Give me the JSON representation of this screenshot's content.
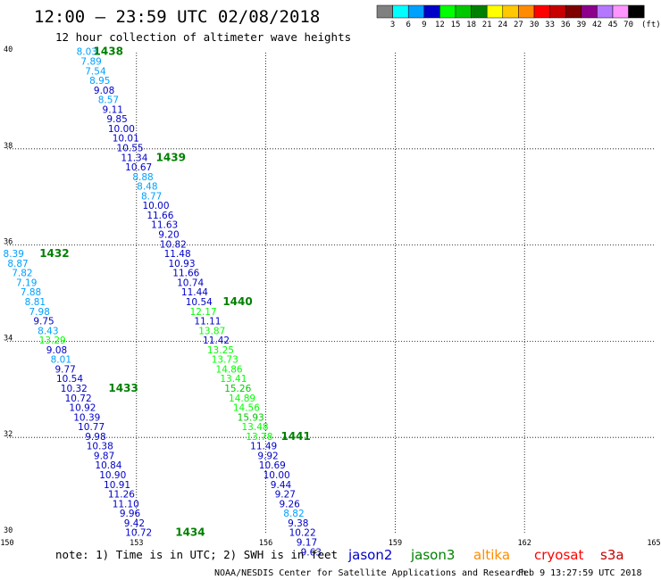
{
  "header": {
    "title": "12:00 – 23:59 UTC 02/08/2018",
    "subtitle": "12 hour collection of altimeter wave heights"
  },
  "scale": {
    "colors": [
      "#808080",
      "#00ffff",
      "#00a0ff",
      "#0000c8",
      "#00ff00",
      "#00c800",
      "#008000",
      "#ffff00",
      "#ffc800",
      "#ff8c00",
      "#ff0000",
      "#c80000",
      "#800000",
      "#8c008c",
      "#b478ff",
      "#ff96ff",
      "#000000"
    ],
    "ticks": [
      "3",
      "6",
      "9",
      "12",
      "15",
      "18",
      "21",
      "24",
      "27",
      "30",
      "33",
      "36",
      "39",
      "42",
      "45",
      "70"
    ],
    "unit": "(ft)"
  },
  "footer": {
    "note": "note:  1) Time is in UTC; 2) SWH is in feet",
    "credit": "NOAA/NESDIS Center for Satellite Applications and Research",
    "timestamp": "Feb  9 13:27:59 UTC 2018",
    "satellites": [
      {
        "name": "jason2",
        "color": "#0000c8"
      },
      {
        "name": "jason3",
        "color": "#008000"
      },
      {
        "name": "altika",
        "color": "#ff8c00"
      },
      {
        "name": "cryosat",
        "color": "#ff0000"
      },
      {
        "name": "s3a",
        "color": "#c80000"
      }
    ]
  },
  "chart_data": {
    "type": "scatter",
    "title": "12:00 – 23:59 UTC 02/08/2018",
    "subtitle": "12 hour collection of altimeter wave heights",
    "xlim": [
      150,
      165
    ],
    "ylim": [
      30,
      40
    ],
    "x_ticks": [
      "150",
      "153",
      "156",
      "159",
      "162",
      "165"
    ],
    "y_ticks": [
      "30",
      "32",
      "34",
      "36",
      "38",
      "40"
    ],
    "grid": true,
    "tracks": [
      {
        "points": [
          {
            "lon": 151.85,
            "lat": 39.95,
            "value": "8.03",
            "color": "#00a0ff"
          },
          {
            "lon": 151.95,
            "lat": 39.75,
            "value": "7.89",
            "color": "#00a0ff"
          },
          {
            "lon": 152.05,
            "lat": 39.55,
            "value": "7.54",
            "color": "#00a0ff"
          },
          {
            "lon": 152.15,
            "lat": 39.35,
            "value": "8.95",
            "color": "#00a0ff"
          },
          {
            "lon": 152.25,
            "lat": 39.15,
            "value": "9.08",
            "color": "#0000c8"
          },
          {
            "lon": 152.35,
            "lat": 38.95,
            "value": "8.57",
            "color": "#00a0ff"
          },
          {
            "lon": 152.45,
            "lat": 38.75,
            "value": "9.11",
            "color": "#0000c8"
          },
          {
            "lon": 152.55,
            "lat": 38.55,
            "value": "9.85",
            "color": "#0000c8"
          },
          {
            "lon": 152.65,
            "lat": 38.35,
            "value": "10.00",
            "color": "#0000c8"
          },
          {
            "lon": 152.75,
            "lat": 38.15,
            "value": "10.01",
            "color": "#0000c8"
          },
          {
            "lon": 152.85,
            "lat": 37.95,
            "value": "10.55",
            "color": "#0000c8"
          },
          {
            "lon": 152.95,
            "lat": 37.75,
            "value": "11.34",
            "color": "#0000c8"
          },
          {
            "lon": 153.05,
            "lat": 37.55,
            "value": "10.67",
            "color": "#0000c8"
          },
          {
            "lon": 153.15,
            "lat": 37.35,
            "value": "8.88",
            "color": "#00a0ff"
          },
          {
            "lon": 153.25,
            "lat": 37.15,
            "value": "8.48",
            "color": "#00a0ff"
          },
          {
            "lon": 153.35,
            "lat": 36.95,
            "value": "8.77",
            "color": "#00a0ff"
          },
          {
            "lon": 153.45,
            "lat": 36.75,
            "value": "10.00",
            "color": "#0000c8"
          },
          {
            "lon": 153.55,
            "lat": 36.55,
            "value": "11.66",
            "color": "#0000c8"
          },
          {
            "lon": 153.65,
            "lat": 36.35,
            "value": "11.63",
            "color": "#0000c8"
          },
          {
            "lon": 153.75,
            "lat": 36.15,
            "value": "9.20",
            "color": "#0000c8"
          },
          {
            "lon": 153.85,
            "lat": 35.95,
            "value": "10.82",
            "color": "#0000c8"
          },
          {
            "lon": 153.95,
            "lat": 35.75,
            "value": "11.48",
            "color": "#0000c8"
          },
          {
            "lon": 154.05,
            "lat": 35.55,
            "value": "10.93",
            "color": "#0000c8"
          },
          {
            "lon": 154.15,
            "lat": 35.35,
            "value": "11.66",
            "color": "#0000c8"
          },
          {
            "lon": 154.25,
            "lat": 35.15,
            "value": "10.74",
            "color": "#0000c8"
          },
          {
            "lon": 154.35,
            "lat": 34.95,
            "value": "11.44",
            "color": "#0000c8"
          },
          {
            "lon": 154.45,
            "lat": 34.75,
            "value": "10.54",
            "color": "#0000c8"
          },
          {
            "lon": 154.55,
            "lat": 34.55,
            "value": "12.17",
            "color": "#00ff00"
          },
          {
            "lon": 154.65,
            "lat": 34.35,
            "value": "11.11",
            "color": "#0000c8"
          },
          {
            "lon": 154.75,
            "lat": 34.15,
            "value": "13.87",
            "color": "#00ff00"
          },
          {
            "lon": 154.85,
            "lat": 33.95,
            "value": "11.42",
            "color": "#0000c8"
          },
          {
            "lon": 154.95,
            "lat": 33.75,
            "value": "13.25",
            "color": "#00ff00"
          },
          {
            "lon": 155.05,
            "lat": 33.55,
            "value": "13.73",
            "color": "#00ff00"
          },
          {
            "lon": 155.15,
            "lat": 33.35,
            "value": "14.86",
            "color": "#00ff00"
          },
          {
            "lon": 155.25,
            "lat": 33.15,
            "value": "13.41",
            "color": "#00ff00"
          },
          {
            "lon": 155.35,
            "lat": 32.95,
            "value": "15.26",
            "color": "#00c800"
          },
          {
            "lon": 155.45,
            "lat": 32.75,
            "value": "14.89",
            "color": "#00ff00"
          },
          {
            "lon": 155.55,
            "lat": 32.55,
            "value": "14.56",
            "color": "#00ff00"
          },
          {
            "lon": 155.65,
            "lat": 32.35,
            "value": "15.93",
            "color": "#00c800"
          },
          {
            "lon": 155.75,
            "lat": 32.15,
            "value": "13.48",
            "color": "#00ff00"
          },
          {
            "lon": 155.85,
            "lat": 31.95,
            "value": "13.78",
            "color": "#00ff00"
          },
          {
            "lon": 155.95,
            "lat": 31.75,
            "value": "11.49",
            "color": "#0000c8"
          },
          {
            "lon": 156.05,
            "lat": 31.55,
            "value": "9.92",
            "color": "#0000c8"
          },
          {
            "lon": 156.15,
            "lat": 31.35,
            "value": "10.69",
            "color": "#0000c8"
          },
          {
            "lon": 156.25,
            "lat": 31.15,
            "value": "10.00",
            "color": "#0000c8"
          },
          {
            "lon": 156.35,
            "lat": 30.95,
            "value": "9.44",
            "color": "#0000c8"
          },
          {
            "lon": 156.45,
            "lat": 30.75,
            "value": "9.27",
            "color": "#0000c8"
          },
          {
            "lon": 156.55,
            "lat": 30.55,
            "value": "9.26",
            "color": "#0000c8"
          },
          {
            "lon": 156.65,
            "lat": 30.35,
            "value": "8.82",
            "color": "#00a0ff"
          },
          {
            "lon": 156.75,
            "lat": 30.15,
            "value": "9.38",
            "color": "#0000c8"
          }
        ]
      },
      {
        "points": [
          {
            "lon": 156.85,
            "lat": 29.95,
            "value": "10.22",
            "color": "#0000c8"
          },
          {
            "lon": 156.95,
            "lat": 29.75,
            "value": "9.17",
            "color": "#0000c8"
          },
          {
            "lon": 157.05,
            "lat": 29.55,
            "value": "9.63",
            "color": "#0000c8"
          }
        ]
      },
      {
        "points": [
          {
            "lon": 150.15,
            "lat": 35.75,
            "value": "8.39",
            "color": "#00a0ff"
          },
          {
            "lon": 150.25,
            "lat": 35.55,
            "value": "8.87",
            "color": "#00a0ff"
          },
          {
            "lon": 150.35,
            "lat": 35.35,
            "value": "7.82",
            "color": "#00a0ff"
          },
          {
            "lon": 150.45,
            "lat": 35.15,
            "value": "7.19",
            "color": "#00a0ff"
          },
          {
            "lon": 150.55,
            "lat": 34.95,
            "value": "7.88",
            "color": "#00a0ff"
          },
          {
            "lon": 150.65,
            "lat": 34.75,
            "value": "8.81",
            "color": "#00a0ff"
          },
          {
            "lon": 150.75,
            "lat": 34.55,
            "value": "7.98",
            "color": "#00a0ff"
          },
          {
            "lon": 150.85,
            "lat": 34.35,
            "value": "9.75",
            "color": "#0000c8"
          },
          {
            "lon": 150.95,
            "lat": 34.15,
            "value": "8.43",
            "color": "#00a0ff"
          },
          {
            "lon": 151.05,
            "lat": 33.95,
            "value": "13.29",
            "color": "#00ff00"
          },
          {
            "lon": 151.15,
            "lat": 33.75,
            "value": "9.08",
            "color": "#0000c8"
          },
          {
            "lon": 151.25,
            "lat": 33.55,
            "value": "8.01",
            "color": "#00a0ff"
          },
          {
            "lon": 151.35,
            "lat": 33.35,
            "value": "9.77",
            "color": "#0000c8"
          },
          {
            "lon": 151.45,
            "lat": 33.15,
            "value": "10.54",
            "color": "#0000c8"
          },
          {
            "lon": 151.55,
            "lat": 32.95,
            "value": "10.32",
            "color": "#0000c8"
          },
          {
            "lon": 151.65,
            "lat": 32.75,
            "value": "10.72",
            "color": "#0000c8"
          },
          {
            "lon": 151.75,
            "lat": 32.55,
            "value": "10.92",
            "color": "#0000c8"
          },
          {
            "lon": 151.85,
            "lat": 32.35,
            "value": "10.39",
            "color": "#0000c8"
          },
          {
            "lon": 151.95,
            "lat": 32.15,
            "value": "10.77",
            "color": "#0000c8"
          },
          {
            "lon": 152.05,
            "lat": 31.95,
            "value": "9.98",
            "color": "#0000c8"
          },
          {
            "lon": 152.15,
            "lat": 31.75,
            "value": "10.38",
            "color": "#0000c8"
          },
          {
            "lon": 152.25,
            "lat": 31.55,
            "value": "9.87",
            "color": "#0000c8"
          },
          {
            "lon": 152.35,
            "lat": 31.35,
            "value": "10.84",
            "color": "#0000c8"
          },
          {
            "lon": 152.45,
            "lat": 31.15,
            "value": "10.90",
            "color": "#0000c8"
          },
          {
            "lon": 152.55,
            "lat": 30.95,
            "value": "10.91",
            "color": "#0000c8"
          },
          {
            "lon": 152.65,
            "lat": 30.75,
            "value": "11.26",
            "color": "#0000c8"
          },
          {
            "lon": 152.75,
            "lat": 30.55,
            "value": "11.10",
            "color": "#0000c8"
          },
          {
            "lon": 152.85,
            "lat": 30.35,
            "value": "9.96",
            "color": "#0000c8"
          },
          {
            "lon": 152.95,
            "lat": 30.15,
            "value": "9.42",
            "color": "#0000c8"
          },
          {
            "lon": 153.05,
            "lat": 29.95,
            "value": "10.72",
            "color": "#0000c8"
          }
        ]
      }
    ],
    "time_labels": [
      {
        "lon": 152.0,
        "lat": 39.95,
        "text": "1438"
      },
      {
        "lon": 153.45,
        "lat": 37.75,
        "text": "1439"
      },
      {
        "lon": 150.75,
        "lat": 35.75,
        "text": "1432"
      },
      {
        "lon": 155.0,
        "lat": 34.75,
        "text": "1440"
      },
      {
        "lon": 152.35,
        "lat": 32.95,
        "text": "1433"
      },
      {
        "lon": 156.35,
        "lat": 31.95,
        "text": "1441"
      },
      {
        "lon": 153.9,
        "lat": 29.95,
        "text": "1434"
      }
    ],
    "time_label_color": "#008000"
  }
}
